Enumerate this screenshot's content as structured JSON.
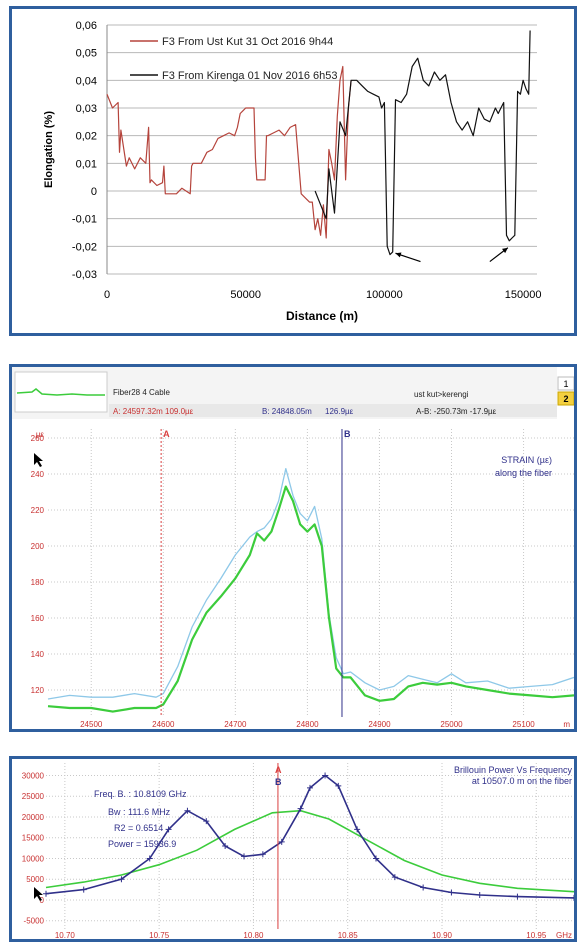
{
  "chart_data": [
    {
      "type": "line",
      "ylabel": "Elongation (%)",
      "xlabel": "Distance (m)",
      "xlim": [
        0,
        155000
      ],
      "ylim": [
        -0.03,
        0.06
      ],
      "x_ticks": [
        0,
        50000,
        100000,
        150000
      ],
      "x_tick_labels": [
        "0",
        "50000",
        "100000",
        "150000"
      ],
      "y_ticks": [
        0.06,
        0.05,
        0.04,
        0.03,
        0.02,
        0.01,
        0,
        -0.01,
        -0.02,
        -0.03
      ],
      "y_tick_labels": [
        "0,06",
        "0,05",
        "0,04",
        "0,03",
        "0,02",
        "0,01",
        "0",
        "-0,01",
        "-0,02",
        "-0,03"
      ],
      "grid": "horizontal",
      "legend_position": "top-left",
      "series": [
        {
          "name": "F3 From Ust Kut 31 Oct 2016 9h44",
          "color": "#b5443c",
          "x": [
            0,
            2000,
            4000,
            4500,
            5000,
            7000,
            8000,
            10000,
            12000,
            14000,
            15000,
            15500,
            16000,
            18000,
            20000,
            20500,
            21000,
            22000,
            25000,
            27000,
            30000,
            30500,
            31000,
            34000,
            36000,
            38000,
            40000,
            42000,
            44000,
            46000,
            47000,
            48000,
            49000,
            50000,
            51000,
            52000,
            53000,
            53500,
            54000,
            56000,
            57000,
            57500,
            58000,
            60000,
            62000,
            64000,
            66000,
            68000,
            70000,
            72000,
            73000,
            74000,
            75000,
            76000,
            77000,
            78000,
            79000,
            80000,
            81000,
            82000,
            83000,
            84000,
            85000,
            86000,
            87000,
            88000
          ],
          "y": [
            0.035,
            0.03,
            0.032,
            0.014,
            0.022,
            0.009,
            0.012,
            0.008,
            0.012,
            0.01,
            0.023,
            0.003,
            0.004,
            0.002,
            0.003,
            0.009,
            -0.001,
            -0.001,
            -0.001,
            0.001,
            -0.001,
            0.009,
            0.01,
            0.01,
            0.014,
            0.015,
            0.019,
            0.02,
            0.021,
            0.02,
            0.023,
            0.028,
            0.029,
            0.03,
            0.03,
            0.03,
            0.03,
            0.012,
            0.004,
            0.004,
            0.004,
            0.02,
            0.02,
            0.021,
            0.022,
            0.02,
            0.023,
            0.024,
            -0.001,
            -0.003,
            -0.004,
            -0.004,
            -0.014,
            -0.01,
            -0.016,
            -0.005,
            -0.017,
            0.015,
            0.01,
            0.004,
            0.027,
            0.04,
            0.045,
            0.004,
            0.03,
            0.04
          ]
        },
        {
          "name": "F3 From Kirenga 01 Nov 2016 6h53",
          "color": "#111111",
          "x": [
            75000,
            77000,
            79000,
            80000,
            82000,
            84000,
            86000,
            88000,
            90000,
            92000,
            94000,
            96000,
            98000,
            99000,
            100000,
            101000,
            102000,
            103000,
            104000,
            106000,
            108000,
            110000,
            112000,
            114000,
            116000,
            118000,
            120000,
            122000,
            124000,
            126000,
            128000,
            130000,
            132000,
            134000,
            136000,
            138000,
            140000,
            141000,
            142000,
            143000,
            144000,
            145000,
            146000,
            147000,
            148000,
            149000,
            150000,
            151000,
            152000,
            152500
          ],
          "y": [
            0.0,
            -0.005,
            -0.01,
            0.008,
            -0.008,
            0.025,
            0.02,
            0.04,
            0.04,
            0.038,
            0.036,
            0.035,
            0.034,
            0.03,
            0.032,
            -0.02,
            -0.023,
            -0.022,
            0.033,
            0.032,
            0.035,
            0.045,
            0.048,
            0.04,
            0.038,
            0.043,
            0.04,
            0.042,
            0.032,
            0.025,
            0.022,
            0.025,
            0.02,
            0.03,
            0.026,
            0.025,
            0.03,
            0.028,
            0.03,
            0.032,
            -0.016,
            -0.018,
            -0.017,
            -0.016,
            0.036,
            0.035,
            0.04,
            0.037,
            0.035,
            0.058
          ]
        }
      ],
      "annotations": [
        "arrow",
        "arrow"
      ]
    },
    {
      "type": "line",
      "header": {
        "fiber_label": "Fiber28  4 Cable",
        "route_label": "ust kut>kerengi",
        "cursor_a": "A: 24597.32m   109.0µε",
        "cursor_b": "B: 24848.05m",
        "cursor_b_value": "126.9µε",
        "delta": "A-B: -250.73m   -17.9µε",
        "page_1": "1",
        "page_2": "2"
      },
      "title": "STRAIN (µε)",
      "subtitle": "along the fiber",
      "ylabel": "µε",
      "xlabel": "m",
      "xlim": [
        24440,
        25170
      ],
      "ylim": [
        105,
        265
      ],
      "x_ticks": [
        24500,
        24600,
        24700,
        24800,
        24900,
        25000,
        25100
      ],
      "y_ticks": [
        120,
        140,
        160,
        180,
        200,
        220,
        240,
        260
      ],
      "grid": "dotted",
      "cursors": [
        {
          "label": "A",
          "x": 24597,
          "color": "#d94040"
        },
        {
          "label": "B",
          "x": 24848,
          "color": "#30308a"
        }
      ],
      "series": [
        {
          "name": "",
          "color": "#3ccc3c",
          "x": [
            24440,
            24470,
            24500,
            24530,
            24560,
            24590,
            24600,
            24620,
            24640,
            24660,
            24680,
            24700,
            24720,
            24730,
            24740,
            24750,
            24760,
            24770,
            24780,
            24790,
            24800,
            24810,
            24820,
            24830,
            24840,
            24850,
            24860,
            24880,
            24900,
            24920,
            24940,
            24960,
            24980,
            25000,
            25020,
            25050,
            25080,
            25110,
            25140,
            25170
          ],
          "y": [
            111,
            110,
            110,
            108,
            110,
            110,
            112,
            125,
            148,
            163,
            172,
            182,
            195,
            207,
            203,
            208,
            220,
            233,
            225,
            212,
            208,
            212,
            200,
            160,
            132,
            127,
            127,
            117,
            114,
            115,
            122,
            124,
            123,
            124,
            122,
            120,
            118,
            117,
            116,
            117
          ]
        },
        {
          "name": "",
          "color": "#8ec8e8",
          "x": [
            24440,
            24470,
            24500,
            24530,
            24560,
            24590,
            24600,
            24620,
            24640,
            24660,
            24680,
            24700,
            24720,
            24730,
            24740,
            24750,
            24760,
            24770,
            24780,
            24790,
            24800,
            24810,
            24820,
            24830,
            24840,
            24850,
            24860,
            24880,
            24900,
            24920,
            24940,
            24960,
            24980,
            25000,
            25020,
            25050,
            25080,
            25110,
            25140,
            25170
          ],
          "y": [
            115,
            117,
            116,
            116,
            118,
            116,
            118,
            133,
            155,
            170,
            182,
            195,
            205,
            208,
            210,
            215,
            225,
            243,
            228,
            218,
            214,
            222,
            204,
            162,
            138,
            129,
            130,
            124,
            120,
            122,
            128,
            126,
            124,
            129,
            124,
            125,
            121,
            122,
            123,
            127
          ]
        }
      ]
    },
    {
      "type": "line",
      "title": "Brillouin Power Vs Frequency",
      "subtitle": "at 10507.0 m on the fiber",
      "stats": {
        "freq": "Freq. B. : 10.8109 GHz",
        "bw": "Bw : 111.6 MHz",
        "r2": "R2 = 0.6514",
        "power": "Power = 15936.9"
      },
      "xlabel": "GHz",
      "xlim": [
        10.69,
        10.97
      ],
      "ylim": [
        -7000,
        33000
      ],
      "x_ticks": [
        10.7,
        10.75,
        10.8,
        10.85,
        10.9,
        10.95
      ],
      "x_tick_labels": [
        "10.70",
        "10.75",
        "10.80",
        "10.85",
        "10.90",
        "10.95"
      ],
      "y_ticks": [
        -5000,
        0,
        5000,
        10000,
        15000,
        20000,
        25000,
        30000
      ],
      "y_tick_labels": [
        "-5000",
        "0",
        "5000",
        "10000",
        "15000",
        "20000",
        "25000",
        "30000"
      ],
      "grid": "dotted",
      "cursors": [
        {
          "label": "A",
          "x": 10.813,
          "color": "#d94040"
        },
        {
          "label": "B",
          "x": 10.813,
          "color": "#30308a"
        }
      ],
      "series": [
        {
          "name": "",
          "color": "#3ccc3c",
          "x": [
            10.69,
            10.71,
            10.73,
            10.75,
            10.77,
            10.79,
            10.81,
            10.825,
            10.84,
            10.86,
            10.88,
            10.9,
            10.92,
            10.94,
            10.97
          ],
          "y": [
            3000,
            4300,
            6000,
            8500,
            12000,
            17000,
            21000,
            21500,
            19500,
            14500,
            9500,
            6000,
            4000,
            2800,
            2000
          ]
        },
        {
          "name": "",
          "color": "#30308a",
          "x": [
            10.69,
            10.71,
            10.73,
            10.745,
            10.755,
            10.765,
            10.775,
            10.785,
            10.795,
            10.805,
            10.815,
            10.825,
            10.83,
            10.838,
            10.845,
            10.855,
            10.865,
            10.875,
            10.89,
            10.905,
            10.92,
            10.94,
            10.97
          ],
          "y": [
            1500,
            2500,
            5000,
            10000,
            17000,
            21500,
            19000,
            13000,
            10500,
            11000,
            14000,
            22000,
            27000,
            30000,
            27500,
            17000,
            10000,
            5500,
            3000,
            1800,
            1200,
            800,
            500
          ]
        }
      ]
    }
  ]
}
